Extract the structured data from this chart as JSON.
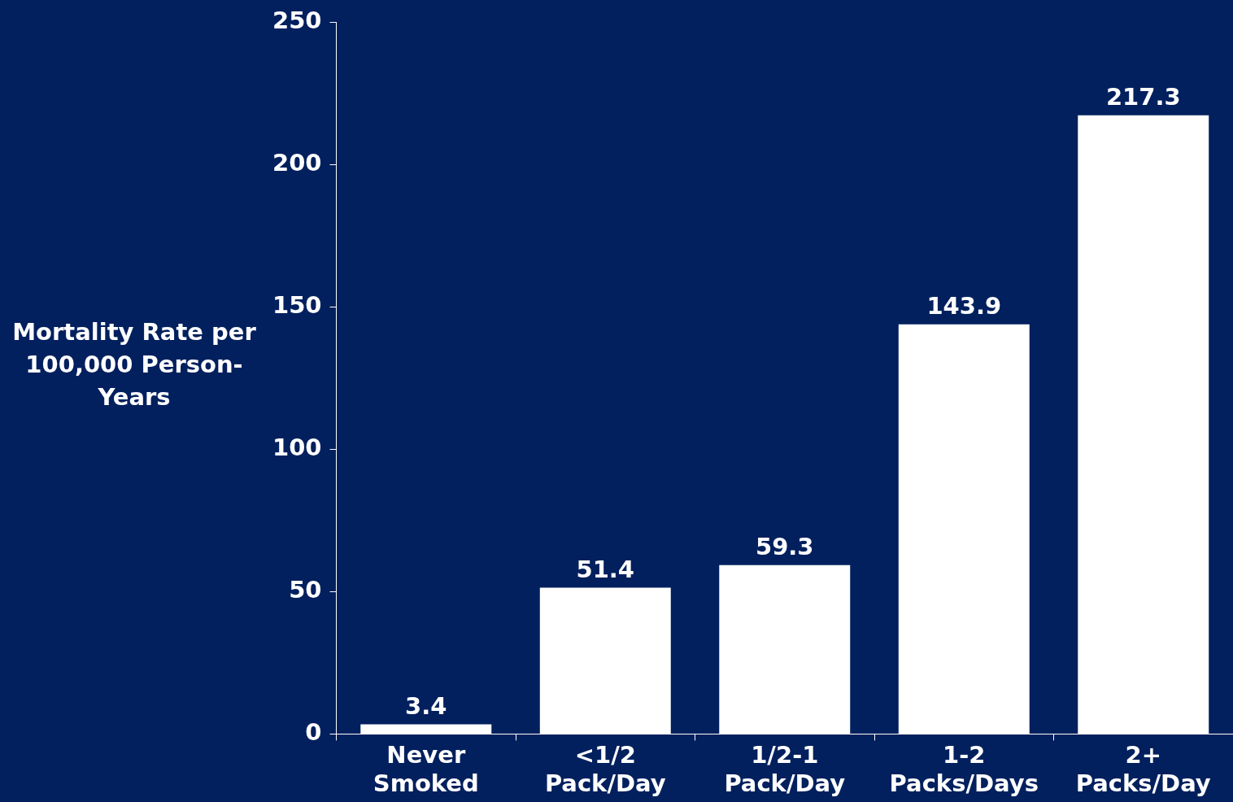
{
  "chart_data": {
    "type": "bar",
    "ylabel": "Mortality Rate per 100,000 Person-Years",
    "categories": [
      "Never Smoked",
      "<1/2 Pack/Day",
      "1/2-1 Pack/Day",
      "1-2 Packs/Days",
      "2+ Packs/Day"
    ],
    "values": [
      3.4,
      51.4,
      59.3,
      143.9,
      217.3
    ],
    "color": "#ffffff",
    "ylim": [
      0,
      250
    ],
    "yticks": [
      0,
      50,
      100,
      150,
      200,
      250
    ],
    "grid": false,
    "legend": false,
    "data_labels": true
  }
}
